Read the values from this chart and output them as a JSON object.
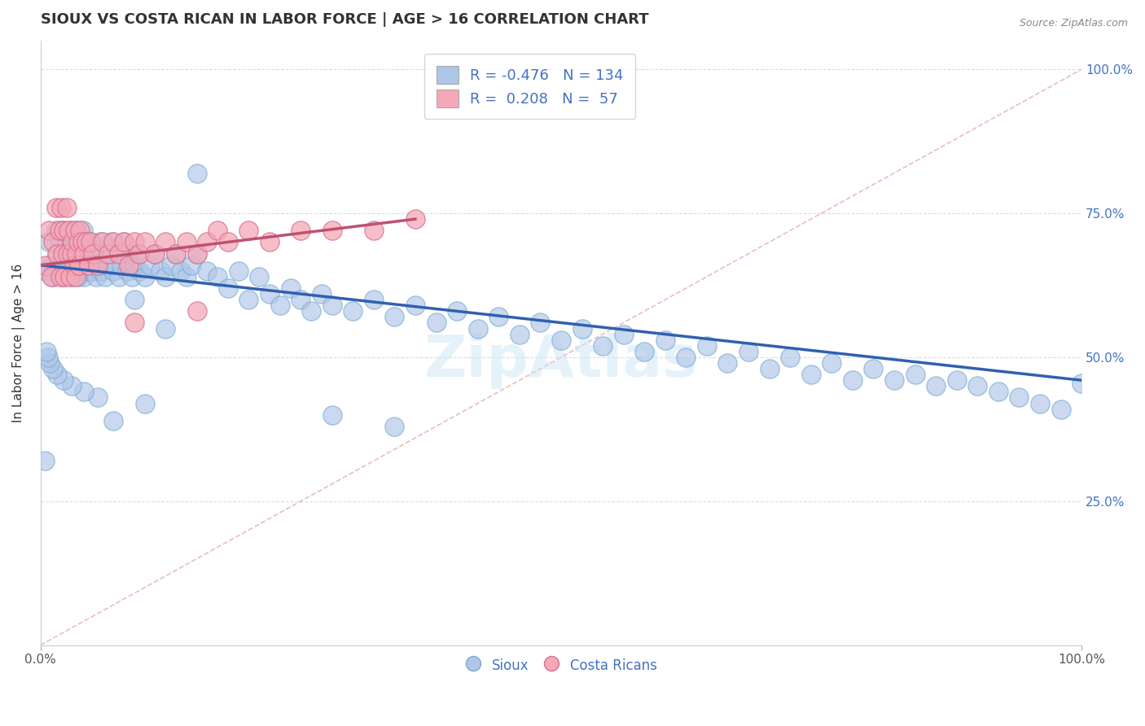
{
  "title": "SIOUX VS COSTA RICAN IN LABOR FORCE | AGE > 16 CORRELATION CHART",
  "source_text": "Source: ZipAtlas.com",
  "ylabel": "In Labor Force | Age > 16",
  "xlim": [
    0.0,
    1.0
  ],
  "ylim": [
    0.0,
    1.05
  ],
  "title_color": "#333333",
  "title_fontsize": 13,
  "sioux_color": "#aec6e8",
  "sioux_edge_color": "#7aaad0",
  "costa_rican_color": "#f4a8b8",
  "costa_edge_color": "#d87090",
  "sioux_line_color": "#3060b0",
  "costa_rican_line_color": "#c05070",
  "diagonal_color": "#d0a0a8",
  "watermark": "ZipAtlas",
  "legend_r_sioux": "-0.476",
  "legend_n_sioux": "134",
  "legend_r_costa": "0.208",
  "legend_n_costa": "57",
  "sioux_x": [
    0.005,
    0.008,
    0.01,
    0.012,
    0.015,
    0.016,
    0.018,
    0.019,
    0.02,
    0.021,
    0.022,
    0.023,
    0.025,
    0.026,
    0.027,
    0.028,
    0.028,
    0.03,
    0.03,
    0.031,
    0.032,
    0.033,
    0.034,
    0.035,
    0.035,
    0.036,
    0.037,
    0.038,
    0.04,
    0.041,
    0.042,
    0.043,
    0.044,
    0.045,
    0.046,
    0.048,
    0.05,
    0.052,
    0.053,
    0.055,
    0.057,
    0.058,
    0.06,
    0.062,
    0.065,
    0.068,
    0.07,
    0.073,
    0.075,
    0.078,
    0.08,
    0.083,
    0.085,
    0.088,
    0.09,
    0.093,
    0.095,
    0.1,
    0.105,
    0.11,
    0.115,
    0.12,
    0.125,
    0.13,
    0.135,
    0.14,
    0.145,
    0.15,
    0.16,
    0.17,
    0.18,
    0.19,
    0.2,
    0.21,
    0.22,
    0.23,
    0.24,
    0.25,
    0.26,
    0.27,
    0.28,
    0.3,
    0.32,
    0.34,
    0.36,
    0.38,
    0.4,
    0.42,
    0.44,
    0.46,
    0.48,
    0.5,
    0.52,
    0.54,
    0.56,
    0.58,
    0.6,
    0.62,
    0.64,
    0.66,
    0.68,
    0.7,
    0.72,
    0.74,
    0.76,
    0.78,
    0.8,
    0.82,
    0.84,
    0.86,
    0.88,
    0.9,
    0.92,
    0.94,
    0.96,
    0.98,
    1.0,
    0.15,
    0.12,
    0.09,
    0.34,
    0.28,
    0.1,
    0.07,
    0.055,
    0.042,
    0.03,
    0.022,
    0.016,
    0.012,
    0.009,
    0.007,
    0.006,
    0.004
  ],
  "sioux_y": [
    0.65,
    0.7,
    0.66,
    0.64,
    0.72,
    0.68,
    0.65,
    0.7,
    0.66,
    0.72,
    0.64,
    0.68,
    0.7,
    0.65,
    0.66,
    0.72,
    0.68,
    0.66,
    0.72,
    0.64,
    0.68,
    0.7,
    0.65,
    0.66,
    0.72,
    0.64,
    0.68,
    0.7,
    0.66,
    0.72,
    0.64,
    0.68,
    0.7,
    0.65,
    0.66,
    0.7,
    0.65,
    0.68,
    0.64,
    0.66,
    0.7,
    0.65,
    0.68,
    0.64,
    0.66,
    0.7,
    0.65,
    0.68,
    0.64,
    0.66,
    0.7,
    0.65,
    0.68,
    0.64,
    0.66,
    0.68,
    0.65,
    0.64,
    0.66,
    0.68,
    0.65,
    0.64,
    0.66,
    0.68,
    0.65,
    0.64,
    0.66,
    0.68,
    0.65,
    0.64,
    0.62,
    0.65,
    0.6,
    0.64,
    0.61,
    0.59,
    0.62,
    0.6,
    0.58,
    0.61,
    0.59,
    0.58,
    0.6,
    0.57,
    0.59,
    0.56,
    0.58,
    0.55,
    0.57,
    0.54,
    0.56,
    0.53,
    0.55,
    0.52,
    0.54,
    0.51,
    0.53,
    0.5,
    0.52,
    0.49,
    0.51,
    0.48,
    0.5,
    0.47,
    0.49,
    0.46,
    0.48,
    0.46,
    0.47,
    0.45,
    0.46,
    0.45,
    0.44,
    0.43,
    0.42,
    0.41,
    0.455,
    0.82,
    0.55,
    0.6,
    0.38,
    0.4,
    0.42,
    0.39,
    0.43,
    0.44,
    0.45,
    0.46,
    0.47,
    0.48,
    0.49,
    0.5,
    0.51,
    0.32
  ],
  "costa_x": [
    0.005,
    0.008,
    0.01,
    0.012,
    0.015,
    0.016,
    0.018,
    0.019,
    0.02,
    0.021,
    0.022,
    0.023,
    0.025,
    0.026,
    0.027,
    0.028,
    0.03,
    0.031,
    0.032,
    0.033,
    0.034,
    0.035,
    0.036,
    0.037,
    0.038,
    0.04,
    0.042,
    0.044,
    0.046,
    0.048,
    0.05,
    0.055,
    0.06,
    0.065,
    0.07,
    0.075,
    0.08,
    0.085,
    0.09,
    0.095,
    0.1,
    0.11,
    0.12,
    0.13,
    0.14,
    0.15,
    0.16,
    0.17,
    0.18,
    0.2,
    0.22,
    0.25,
    0.28,
    0.32,
    0.36,
    0.15,
    0.09
  ],
  "costa_y": [
    0.66,
    0.72,
    0.64,
    0.7,
    0.76,
    0.68,
    0.72,
    0.64,
    0.76,
    0.68,
    0.72,
    0.64,
    0.76,
    0.68,
    0.72,
    0.64,
    0.68,
    0.7,
    0.66,
    0.72,
    0.64,
    0.68,
    0.7,
    0.66,
    0.72,
    0.7,
    0.68,
    0.7,
    0.66,
    0.7,
    0.68,
    0.66,
    0.7,
    0.68,
    0.7,
    0.68,
    0.7,
    0.66,
    0.7,
    0.68,
    0.7,
    0.68,
    0.7,
    0.68,
    0.7,
    0.68,
    0.7,
    0.72,
    0.7,
    0.72,
    0.7,
    0.72,
    0.72,
    0.72,
    0.74,
    0.58,
    0.56
  ]
}
